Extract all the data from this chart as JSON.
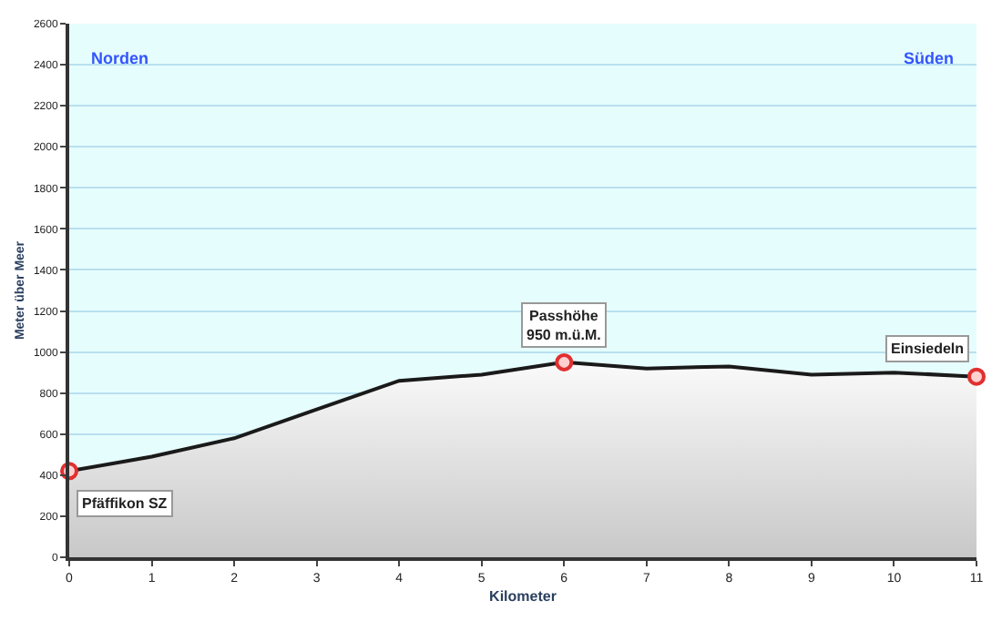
{
  "chart_data": {
    "type": "area",
    "xlabel": "Kilometer",
    "ylabel": "Meter über Meer",
    "x": [
      0,
      1,
      2,
      3,
      4,
      5,
      6,
      7,
      8,
      9,
      10,
      11
    ],
    "series": [
      {
        "color": "#1a1a1a",
        "values": [
          420,
          490,
          580,
          720,
          860,
          890,
          950,
          920,
          930,
          890,
          900,
          880
        ]
      },
      {
        "type": "scatter",
        "color": "#e03030",
        "marker": "circle",
        "x": [
          0,
          6,
          11
        ],
        "values": [
          420,
          950,
          880
        ]
      }
    ],
    "annotations": [
      {
        "text": "Pfäffikon SZ",
        "x": 0,
        "y": 420
      },
      {
        "text": "Passhöhe\n950 m.ü.M.",
        "x": 6,
        "y": 950
      },
      {
        "text": "Einsiedeln",
        "x": 11,
        "y": 880
      },
      "Norden",
      "Süden"
    ],
    "xlim": [
      0,
      11
    ],
    "xticks": [
      0,
      1,
      2,
      3,
      4,
      5,
      6,
      7,
      8,
      9,
      10,
      11
    ],
    "ylim": [
      0,
      2600
    ],
    "yticks": [
      0,
      200,
      400,
      600,
      800,
      1000,
      1200,
      1400,
      1600,
      1800,
      2000,
      2200,
      2400,
      2600
    ],
    "grid": "y"
  }
}
